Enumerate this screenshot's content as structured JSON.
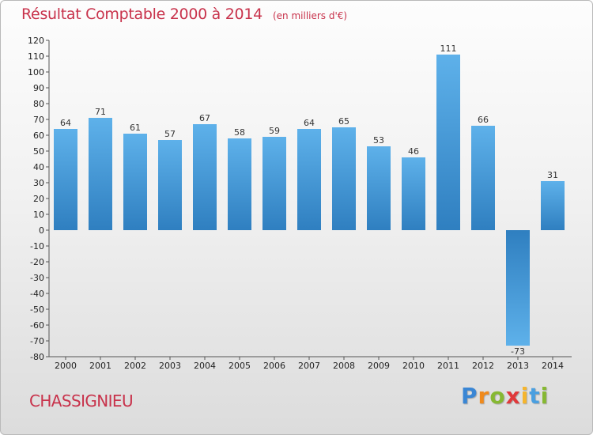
{
  "header": {
    "title": "Résultat Comptable 2000 à 2014",
    "unit": "(en milliers d'€)"
  },
  "footer": {
    "commune": "CHASSIGNIEU",
    "logo": [
      "P",
      "r",
      "o",
      "x",
      "i",
      "t",
      "i"
    ]
  },
  "colors": {
    "title": "#c8324b",
    "bar_light": "#5eb1ea",
    "bar_dark": "#2f7fc0"
  },
  "chart_data": {
    "type": "bar",
    "title": "Résultat Comptable 2000 à 2014",
    "subtitle": "(en milliers d'€)",
    "categories": [
      "2000",
      "2001",
      "2002",
      "2003",
      "2004",
      "2005",
      "2006",
      "2007",
      "2008",
      "2009",
      "2010",
      "2011",
      "2012",
      "2013",
      "2014"
    ],
    "values": [
      64,
      71,
      61,
      57,
      67,
      58,
      59,
      64,
      65,
      53,
      46,
      111,
      66,
      -73,
      31
    ],
    "ylim": [
      -80,
      120
    ],
    "yticks": [
      120,
      110,
      100,
      90,
      80,
      70,
      60,
      50,
      40,
      30,
      20,
      10,
      0,
      -10,
      -20,
      -30,
      -40,
      -50,
      -60,
      -70,
      -80
    ],
    "grid": false,
    "data_labels": true
  }
}
